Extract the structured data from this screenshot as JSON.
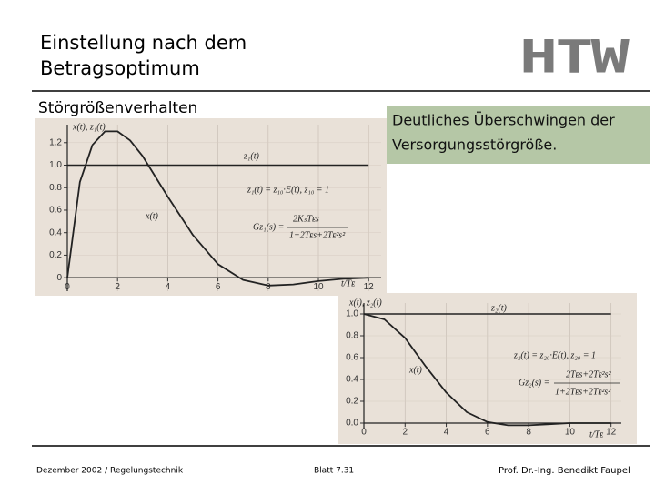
{
  "header": {
    "title_lines": [
      "Einstellung nach dem",
      "Betragsoptimum"
    ],
    "logo": "HTW"
  },
  "subtitle": "Störgrößenverhalten",
  "callout": [
    "Deutliches Überschwingen der",
    "Versorgungsstörgröße."
  ],
  "charts": [
    {
      "type": "line",
      "ylabel": "x(t), z₁(t)",
      "xlabel": "t/Tᴇ",
      "x": [
        0,
        0.5,
        1,
        1.5,
        2,
        2.5,
        3,
        4,
        5,
        6,
        7,
        8,
        9,
        10,
        11,
        12
      ],
      "series": [
        {
          "name": "x(t)",
          "color": "#222222",
          "values": [
            0,
            0.85,
            1.18,
            1.3,
            1.3,
            1.22,
            1.08,
            0.72,
            0.38,
            0.12,
            -0.02,
            -0.07,
            -0.06,
            -0.03,
            -0.01,
            0
          ]
        },
        {
          "name": "z₁(t)",
          "color": "#222222",
          "values": [
            1,
            1,
            1,
            1,
            1,
            1,
            1,
            1,
            1,
            1,
            1,
            1,
            1,
            1,
            1,
            1
          ]
        }
      ],
      "xlim": [
        0,
        12.5
      ],
      "ylim": [
        -0.12,
        1.36
      ],
      "xticks": [
        0,
        2,
        4,
        6,
        8,
        10,
        12
      ],
      "yticks": [
        0,
        0.2,
        0.4,
        0.6,
        0.8,
        {
          "value": 1,
          "label": "1.0"
        },
        1.2
      ],
      "grid": true,
      "annotations": [
        "z₁(t) = z₁₀·E(t),  z₁₀ = 1",
        "Gz₁(s) =",
        "2KₛTᴇs",
        "1+2Tᴇs+2Tᴇ²s²"
      ]
    },
    {
      "type": "line",
      "ylabel": "x(t), z₂(t)",
      "xlabel": "t/Tᴇ",
      "x": [
        0,
        1,
        2,
        3,
        4,
        5,
        6,
        7,
        8,
        9,
        10,
        11,
        12
      ],
      "series": [
        {
          "name": "x(t)",
          "color": "#222222",
          "values": [
            1,
            0.95,
            0.78,
            0.52,
            0.28,
            0.1,
            0.01,
            -0.02,
            -0.02,
            -0.01,
            0,
            0,
            0
          ]
        },
        {
          "name": "z₂(t)",
          "color": "#222222",
          "values": [
            1,
            1,
            1,
            1,
            1,
            1,
            1,
            1,
            1,
            1,
            1,
            1,
            1
          ]
        }
      ],
      "xlim": [
        0,
        12.5
      ],
      "ylim": [
        -0.05,
        1.1
      ],
      "xticks": [
        0,
        2,
        4,
        6,
        8,
        10,
        12
      ],
      "yticks": [
        {
          "value": 0,
          "label": "0.0"
        },
        0.2,
        0.4,
        0.6,
        0.8,
        {
          "value": 1,
          "label": "1.0"
        }
      ],
      "grid": true,
      "annotations": [
        "z₂(t) = z₂₀·E(t),  z₂₀ = 1",
        "Gz₂(s) =",
        "2Tᴇs+2Tᴇ²s²",
        "1+2Tᴇs+2Tᴇ²s²"
      ]
    }
  ],
  "footer": {
    "left": "Dezember 2002 / Regelungstechnik",
    "center": "Blatt 7.31",
    "right": "Prof. Dr.-Ing. Benedikt Faupel"
  }
}
